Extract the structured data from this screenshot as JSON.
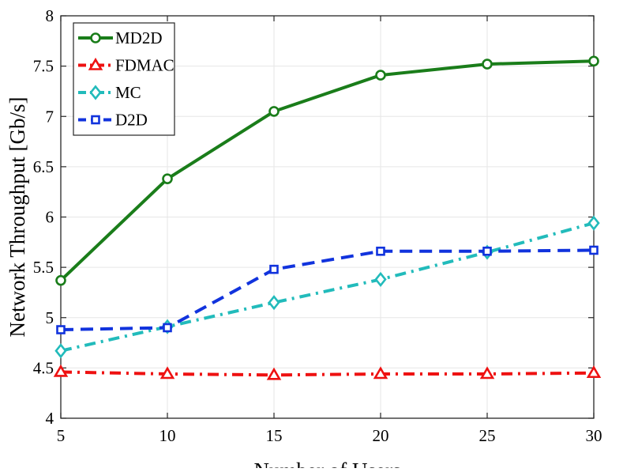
{
  "chart_data": {
    "type": "line",
    "title": "",
    "xlabel": "Number of Users",
    "ylabel": "Network Throughput [Gb/s]",
    "x": [
      5,
      10,
      15,
      20,
      25,
      30
    ],
    "xlim": [
      5,
      30
    ],
    "ylim": [
      4,
      8
    ],
    "xticks": [
      "5",
      "10",
      "15",
      "20",
      "25",
      "30"
    ],
    "yticks": [
      "4",
      "4.5",
      "5",
      "5.5",
      "6",
      "6.5",
      "7",
      "7.5",
      "8"
    ],
    "grid": true,
    "legend_position": "top-left",
    "series": [
      {
        "name": "MD2D",
        "values": [
          5.37,
          6.38,
          7.05,
          7.41,
          7.52,
          7.55
        ],
        "color": "#1a7d1a",
        "marker": "circle",
        "linestyle": "solid"
      },
      {
        "name": "FDMAC",
        "values": [
          4.46,
          4.44,
          4.43,
          4.44,
          4.44,
          4.45
        ],
        "color": "#ee1111",
        "marker": "triangle",
        "linestyle": "dashdot"
      },
      {
        "name": "MC",
        "values": [
          4.67,
          4.91,
          5.15,
          5.38,
          5.65,
          5.94
        ],
        "color": "#22bbbb",
        "marker": "diamond",
        "linestyle": "dashdot"
      },
      {
        "name": "D2D",
        "values": [
          4.88,
          4.9,
          5.48,
          5.66,
          5.66,
          5.67
        ],
        "color": "#1133dd",
        "marker": "square",
        "linestyle": "dashed"
      }
    ]
  }
}
